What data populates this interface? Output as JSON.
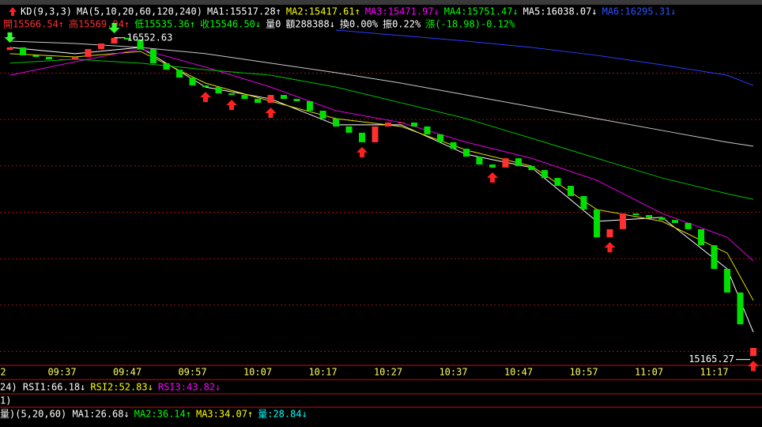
{
  "header": {
    "lines": [
      [
        {
          "text": "KD(9,3,3)",
          "color": "#ffffff"
        },
        {
          "text": "MA(5,10,20,60,120,240)",
          "color": "#ffffff"
        },
        {
          "text": "MA1:15517.28↑",
          "color": "#ffffff"
        },
        {
          "text": "MA2:15417.61↑",
          "color": "#ffff00"
        },
        {
          "text": "MA3:15471.97↓",
          "color": "#ff00ff"
        },
        {
          "text": "MA4:15751.47↓",
          "color": "#00ff00"
        },
        {
          "text": "MA5:16038.07↓",
          "color": "#ffffff"
        },
        {
          "text": "MA6:16295.31↓",
          "color": "#3050ff"
        }
      ],
      [
        {
          "text": "開15566.54↑",
          "color": "#ff3030"
        },
        {
          "text": "高15569.94↑",
          "color": "#ff3030"
        },
        {
          "text": "低15535.36↑",
          "color": "#00ff00"
        },
        {
          "text": "收15546.50↓",
          "color": "#00ff00"
        },
        {
          "text": "量0",
          "color": "#ffffff"
        },
        {
          "text": "額288388↓",
          "color": "#ffffff"
        },
        {
          "text": "換0.00%",
          "color": "#ffffff"
        },
        {
          "text": "振0.22%",
          "color": "#ffffff"
        },
        {
          "text": "漲(-18.98)-0.12%",
          "color": "#00ff00"
        }
      ]
    ]
  },
  "chart_data": {
    "type": "candlestick",
    "x_partial_label": "2",
    "categories": [
      null,
      null,
      null,
      null,
      "09:37",
      null,
      null,
      null,
      null,
      "09:47",
      null,
      null,
      null,
      null,
      "09:57",
      null,
      null,
      null,
      null,
      "10:07",
      null,
      null,
      null,
      null,
      "10:17",
      null,
      null,
      null,
      null,
      "10:27",
      null,
      null,
      null,
      null,
      "10:37",
      null,
      null,
      null,
      null,
      "10:47",
      null,
      null,
      null,
      null,
      "10:57",
      null,
      null,
      null,
      null,
      "11:07",
      null,
      null,
      null,
      null,
      "11:17",
      null,
      null,
      null
    ],
    "open": [
      16500,
      16511,
      16477,
      16470,
      16460,
      16460,
      16470,
      16504,
      16528,
      16552,
      16545,
      16504,
      16443,
      16415,
      16381,
      16347,
      16340,
      16313,
      16306,
      16289,
      16272,
      16306,
      16289,
      16279,
      16238,
      16204,
      16170,
      16143,
      16102,
      16170,
      16187,
      16187,
      16170,
      16136,
      16102,
      16074,
      16040,
      16006,
      15993,
      16033,
      15999,
      15982,
      15948,
      15914,
      15870,
      15812,
      15692,
      15727,
      15795,
      15788,
      15778,
      15767,
      15754,
      15727,
      15658,
      15556,
      15454,
      15180
    ],
    "close": [
      16511,
      16477,
      16470,
      16460,
      16460,
      16470,
      16504,
      16528,
      16552,
      16545,
      16504,
      16443,
      16415,
      16381,
      16347,
      16340,
      16313,
      16306,
      16289,
      16272,
      16306,
      16289,
      16279,
      16238,
      16204,
      16170,
      16143,
      16102,
      16170,
      16187,
      16187,
      16170,
      16136,
      16102,
      16074,
      16040,
      16006,
      15993,
      16033,
      15999,
      15982,
      15948,
      15914,
      15870,
      15812,
      15692,
      15727,
      15795,
      15788,
      15778,
      15767,
      15754,
      15727,
      15658,
      15556,
      15454,
      15317,
      15215
    ],
    "up_color": "#ff3030",
    "down_color": "#00e000",
    "ylim": [
      15140,
      16620
    ],
    "gridlines": [
      16400,
      16200,
      16000,
      15800,
      15600,
      15400,
      15200
    ],
    "grid_color": "#a01010",
    "lines": [
      {
        "color": "#ffffff",
        "x": [
          0,
          5,
          10,
          15,
          20,
          25,
          30,
          35,
          40,
          45,
          50,
          55,
          57
        ],
        "values": [
          16511,
          16484,
          16511,
          16340,
          16289,
          16177,
          16177,
          16050,
          15993,
          15761,
          15778,
          15556,
          15283
        ]
      },
      {
        "color": "#e0e000",
        "x": [
          0,
          5,
          10,
          15,
          20,
          25,
          30,
          35,
          40,
          45,
          50,
          55,
          57
        ],
        "values": [
          16484,
          16470,
          16494,
          16357,
          16279,
          16204,
          16170,
          16068,
          15999,
          15812,
          15761,
          15624,
          15420
        ]
      },
      {
        "color": "#e000e0",
        "x": [
          0,
          5,
          10,
          15,
          20,
          25,
          30,
          35,
          40,
          45,
          50,
          55,
          57
        ],
        "values": [
          16391,
          16449,
          16504,
          16426,
          16340,
          16238,
          16187,
          16102,
          16033,
          15938,
          15795,
          15692,
          15590
        ]
      },
      {
        "color": "#00c000",
        "x": [
          0,
          5,
          10,
          15,
          20,
          25,
          30,
          35,
          40,
          45,
          50,
          55,
          57
        ],
        "values": [
          16443,
          16460,
          16443,
          16415,
          16391,
          16340,
          16272,
          16204,
          16119,
          16033,
          15948,
          15880,
          15856
        ]
      },
      {
        "color": "#c8c8c8",
        "x": [
          0,
          5,
          10,
          15,
          20,
          25,
          30,
          35,
          40,
          45,
          50,
          55,
          57
        ],
        "values": [
          16538,
          16528,
          16511,
          16484,
          16443,
          16402,
          16357,
          16306,
          16255,
          16204,
          16153,
          16102,
          16085
        ]
      },
      {
        "color": "#2a3cff",
        "x": [
          25,
          30,
          35,
          40,
          45,
          50,
          55,
          57
        ],
        "values": [
          16586,
          16562,
          16538,
          16511,
          16477,
          16436,
          16391,
          16347
        ]
      }
    ],
    "buy_signals": [
      15,
      17,
      20,
      27,
      37,
      46,
      57
    ],
    "sell_signals": [
      0,
      8
    ],
    "annotations": [
      {
        "x": 8,
        "value": 16552.63,
        "label": "16552.63"
      },
      {
        "x": 57,
        "value": 15165.27,
        "label": "15165.27"
      }
    ]
  },
  "panels": [
    [
      {
        "text": "24) RSI1:66.18↓",
        "color": "#ffffff"
      },
      {
        "text": "RSI2:52.83↓",
        "color": "#ffff00"
      },
      {
        "text": "RSI3:43.82↓",
        "color": "#ff00ff"
      }
    ],
    [
      {
        "text": "1)",
        "color": "#ffffff"
      }
    ],
    [
      {
        "text": "量)(5,20,60) MA1:26.68↓",
        "color": "#ffffff"
      },
      {
        "text": "MA2:36.14↑",
        "color": "#00ff00"
      },
      {
        "text": "MA3:34.07↑",
        "color": "#ffff00"
      },
      {
        "text": "量:28.84↓",
        "color": "#00ffff"
      }
    ]
  ]
}
